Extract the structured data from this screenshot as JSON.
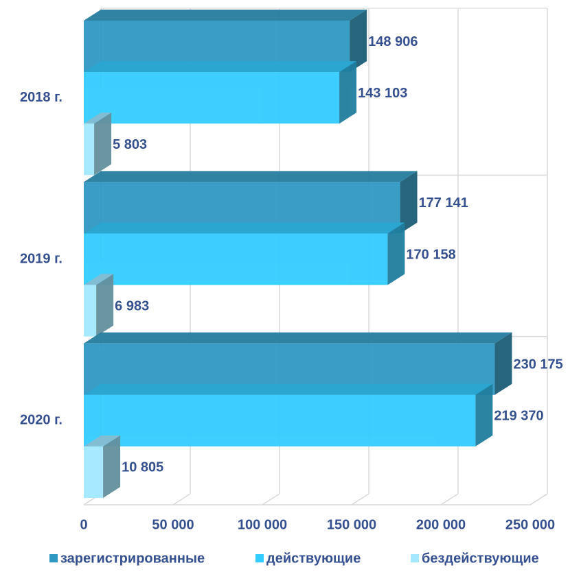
{
  "chart_data": {
    "type": "bar3d_horizontal",
    "categories": [
      "2018 г.",
      "2019 г.",
      "2020 г."
    ],
    "series": [
      {
        "name": "зарегистрированные",
        "color": "#2f98c2",
        "values": [
          148906,
          177141,
          230175
        ],
        "value_labels": [
          "148 906",
          "177 141",
          "230 175"
        ]
      },
      {
        "name": "действующие",
        "color": "#33ccff",
        "values": [
          143103,
          170158,
          219370
        ],
        "value_labels": [
          "143 103",
          "170 158",
          "219 370"
        ]
      },
      {
        "name": "бездействующие",
        "color": "#a3e8ff",
        "values": [
          5803,
          6983,
          10805
        ],
        "value_labels": [
          "5 803",
          "6 983",
          "10 805"
        ]
      }
    ],
    "xlim": [
      0,
      250000
    ],
    "xticks": [
      0,
      {
        "value": 50000,
        "label": "50 000"
      },
      {
        "value": 100000,
        "label": "100 000"
      },
      {
        "value": 150000,
        "label": "150 000"
      },
      {
        "value": 200000,
        "label": "200 000"
      },
      {
        "value": 250000,
        "label": "250 000"
      }
    ],
    "grid": true,
    "legend": "bottom"
  }
}
